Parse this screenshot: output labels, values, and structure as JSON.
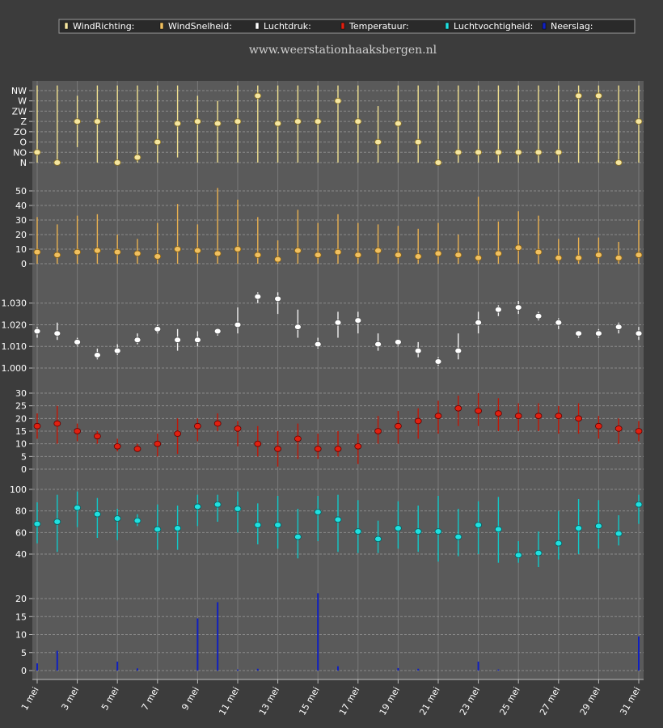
{
  "site_title": "www.weerstationhaaksbergen.nl",
  "legend": [
    {
      "label": "WindRichting:",
      "color": "#f5e6a0"
    },
    {
      "label": "WindSnelheid:",
      "color": "#f0c060"
    },
    {
      "label": "Luchtdruk:",
      "color": "#ffffff"
    },
    {
      "label": "Temperatuur:",
      "color": "#e02010"
    },
    {
      "label": "Luchtvochtigheid:",
      "color": "#20e0e0"
    },
    {
      "label": "Neerslag:",
      "color": "#1020c0"
    }
  ],
  "chart_data": {
    "type": "line",
    "days": [
      1,
      2,
      3,
      4,
      5,
      6,
      7,
      8,
      9,
      10,
      11,
      12,
      13,
      14,
      15,
      16,
      17,
      18,
      19,
      20,
      21,
      22,
      23,
      24,
      25,
      26,
      27,
      28,
      29,
      30,
      31
    ],
    "x_tick_labels": [
      "1 mei",
      "3 mei",
      "5 mei",
      "7 mei",
      "9 mei",
      "11 mei",
      "13 mei",
      "15 mei",
      "17 mei",
      "19 mei",
      "21 mei",
      "23 mei",
      "25 mei",
      "27 mei",
      "29 mei",
      "31 mei"
    ],
    "wind_direction": {
      "categories": [
        "N",
        "NO",
        "O",
        "ZO",
        "Z",
        "ZW",
        "W",
        "NW"
      ],
      "avg": [
        1,
        0,
        4,
        4,
        0,
        0.5,
        2,
        3.8,
        4,
        3.8,
        4,
        6.5,
        3.8,
        4,
        4,
        6,
        4,
        2,
        3.8,
        2,
        0,
        1,
        1,
        1,
        1,
        1,
        1,
        6.5,
        6.5,
        0,
        4
      ],
      "low": [
        0,
        0,
        1.5,
        0,
        0,
        0,
        0,
        0.5,
        0,
        0,
        0,
        0,
        0,
        0,
        0,
        0,
        0,
        0,
        0,
        0,
        0,
        0,
        0,
        0,
        0,
        0,
        0,
        0,
        0,
        0,
        0
      ],
      "high": [
        7.5,
        7.5,
        6.5,
        7.5,
        7.5,
        7.5,
        7.5,
        7.5,
        6.5,
        6,
        7.5,
        7.5,
        7.5,
        7.5,
        7.5,
        7.5,
        7.5,
        5.5,
        7.5,
        7.5,
        7.5,
        7.5,
        7.5,
        7.5,
        7.5,
        7.5,
        7.5,
        7.5,
        7.5,
        7.5,
        7.5
      ]
    },
    "wind_speed": {
      "yticks": [
        0,
        10,
        20,
        30,
        40,
        50
      ],
      "avg": [
        8,
        6,
        8,
        9,
        8,
        7,
        5,
        10,
        9,
        7,
        10,
        6,
        3,
        9,
        6,
        8,
        6,
        9,
        6,
        5,
        7,
        6,
        4,
        7,
        11,
        8,
        4,
        4,
        6,
        4,
        6
      ],
      "low": [
        0,
        0,
        0,
        0,
        0,
        0,
        0,
        0,
        0,
        0,
        0,
        0,
        0,
        0,
        0,
        0,
        0,
        0,
        0,
        0,
        0,
        0,
        0,
        0,
        0,
        0,
        0,
        0,
        0,
        0,
        0
      ],
      "high": [
        32,
        27,
        33,
        34,
        20,
        17,
        28,
        41,
        27,
        52,
        44,
        32,
        16,
        37,
        28,
        34,
        28,
        27,
        26,
        24,
        28,
        20,
        46,
        29,
        36,
        33,
        17,
        18,
        18,
        15,
        30
      ]
    },
    "pressure": {
      "yticks": [
        1000,
        1010,
        1020,
        1030
      ],
      "ytick_labels": [
        "1.000",
        "1.010",
        "1.020",
        "1.030"
      ],
      "avg": [
        1017,
        1016,
        1012,
        1006,
        1008,
        1013,
        1018,
        1013,
        1013,
        1017,
        1020,
        1033,
        1032,
        1019,
        1011,
        1021,
        1022,
        1011,
        1012,
        1008,
        1003,
        1008,
        1021,
        1027,
        1028,
        1024,
        1021,
        1016,
        1016,
        1019,
        1016
      ],
      "low": [
        1014,
        1013,
        1010,
        1004,
        1006,
        1011,
        1016,
        1008,
        1010,
        1015,
        1016,
        1030,
        1025,
        1014,
        1009,
        1014,
        1016,
        1008,
        1010,
        1005,
        1001,
        1004,
        1016,
        1024,
        1025,
        1022,
        1018,
        1014,
        1014,
        1016,
        1013
      ],
      "high": [
        1019,
        1021,
        1014,
        1009,
        1011,
        1016,
        1020,
        1018,
        1017,
        1018,
        1028,
        1035,
        1035,
        1027,
        1014,
        1026,
        1026,
        1016,
        1013,
        1012,
        1005,
        1016,
        1026,
        1029,
        1031,
        1026,
        1023,
        1017,
        1018,
        1021,
        1019
      ]
    },
    "temperature": {
      "yticks": [
        0,
        5,
        10,
        15,
        20,
        25,
        30
      ],
      "avg": [
        17,
        18,
        15,
        13,
        9,
        8,
        10,
        14,
        17,
        18,
        16,
        10,
        8,
        12,
        8,
        8,
        9,
        15,
        17,
        19,
        21,
        24,
        23,
        22,
        21,
        21,
        21,
        20,
        17,
        16,
        15
      ],
      "low": [
        12,
        10,
        11,
        10,
        7,
        7,
        5,
        6,
        11,
        15,
        9,
        5,
        1,
        4,
        4,
        5,
        2,
        10,
        10,
        12,
        14,
        17,
        17,
        15,
        15,
        15,
        14,
        14,
        12,
        10,
        11
      ],
      "high": [
        22,
        25,
        18,
        15,
        12,
        10,
        14,
        20,
        20,
        22,
        19,
        17,
        15,
        18,
        14,
        15,
        14,
        21,
        23,
        24,
        27,
        29,
        30,
        28,
        26,
        26,
        25,
        26,
        21,
        20,
        19
      ]
    },
    "humidity": {
      "yticks": [
        40,
        60,
        80,
        100
      ],
      "avg": [
        68,
        70,
        83,
        77,
        73,
        71,
        63,
        64,
        84,
        86,
        82,
        67,
        67,
        56,
        79,
        72,
        61,
        54,
        64,
        61,
        61,
        56,
        67,
        63,
        39,
        41,
        50,
        64,
        66,
        59,
        86
      ],
      "low": [
        50,
        42,
        65,
        55,
        53,
        66,
        44,
        44,
        66,
        70,
        60,
        49,
        45,
        36,
        52,
        42,
        41,
        41,
        45,
        42,
        33,
        38,
        40,
        32,
        32,
        28,
        35,
        40,
        45,
        48,
        68
      ],
      "high": [
        88,
        95,
        98,
        92,
        82,
        77,
        86,
        85,
        95,
        95,
        98,
        87,
        94,
        82,
        94,
        95,
        90,
        71,
        89,
        85,
        94,
        82,
        89,
        93,
        52,
        61,
        80,
        91,
        90,
        76,
        95
      ]
    },
    "precipitation": {
      "yticks": [
        0,
        5,
        10,
        15,
        20
      ],
      "values": [
        2,
        5.5,
        0,
        0,
        2.5,
        0.6,
        0,
        0,
        14.5,
        19,
        0.3,
        0.5,
        0,
        0,
        21.5,
        1.2,
        0,
        0,
        0.7,
        0.5,
        0,
        0,
        2.5,
        0.3,
        0,
        0,
        0,
        0,
        0,
        0,
        9.5
      ]
    }
  }
}
